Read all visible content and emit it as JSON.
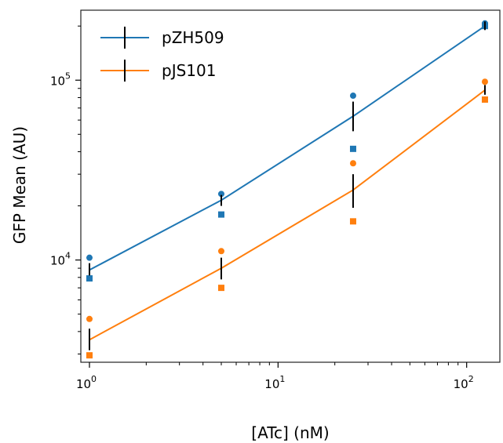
{
  "chart_data": {
    "type": "scatter",
    "title": "",
    "xlabel": "[ATc] (nM)",
    "ylabel": "GFP Mean (AU)",
    "xscale": "log",
    "yscale": "log",
    "xlim": [
      0.9,
      150
    ],
    "ylim": [
      2700,
      245000
    ],
    "x_ticks": [
      {
        "value": 1,
        "base": "10",
        "exp": "0"
      },
      {
        "value": 10,
        "base": "10",
        "exp": "1"
      },
      {
        "value": 100,
        "base": "10",
        "exp": "2"
      }
    ],
    "y_ticks": [
      {
        "value": 10000,
        "base": "10",
        "exp": "4"
      },
      {
        "value": 100000,
        "base": "10",
        "exp": "5"
      }
    ],
    "grid": false,
    "legend_position": "top-left",
    "series": [
      {
        "name": "pZH509",
        "color": "#1f77b4",
        "x": [
          1,
          5,
          25,
          125
        ],
        "fit_y": [
          8800,
          21500,
          63000,
          200000
        ],
        "mean_y": [
          8800,
          21500,
          63000,
          200000
        ],
        "err_low": [
          8200,
          20000,
          52000,
          190000
        ],
        "err_high": [
          9600,
          23000,
          76000,
          212000
        ],
        "points": [
          {
            "x": 1,
            "y": 10300,
            "marker": "circle"
          },
          {
            "x": 1,
            "y": 7900,
            "marker": "square"
          },
          {
            "x": 5,
            "y": 23300,
            "marker": "circle"
          },
          {
            "x": 5,
            "y": 17900,
            "marker": "square"
          },
          {
            "x": 25,
            "y": 82000,
            "marker": "circle"
          },
          {
            "x": 25,
            "y": 41500,
            "marker": "square"
          },
          {
            "x": 125,
            "y": 207000,
            "marker": "circle"
          },
          {
            "x": 125,
            "y": 200000,
            "marker": "square"
          }
        ]
      },
      {
        "name": "pJS101",
        "color": "#ff7f0e",
        "x": [
          1,
          5,
          25,
          125
        ],
        "fit_y": [
          3600,
          9000,
          24500,
          88000
        ],
        "mean_y": [
          3600,
          9000,
          24500,
          88000
        ],
        "err_low": [
          3150,
          7800,
          19500,
          83000
        ],
        "err_high": [
          4150,
          10300,
          30000,
          94000
        ],
        "points": [
          {
            "x": 1,
            "y": 4700,
            "marker": "circle"
          },
          {
            "x": 1,
            "y": 2950,
            "marker": "square"
          },
          {
            "x": 5,
            "y": 11200,
            "marker": "circle"
          },
          {
            "x": 5,
            "y": 7000,
            "marker": "square"
          },
          {
            "x": 25,
            "y": 34500,
            "marker": "circle"
          },
          {
            "x": 25,
            "y": 16400,
            "marker": "square"
          },
          {
            "x": 125,
            "y": 98000,
            "marker": "circle"
          },
          {
            "x": 125,
            "y": 78000,
            "marker": "square"
          }
        ]
      }
    ]
  }
}
